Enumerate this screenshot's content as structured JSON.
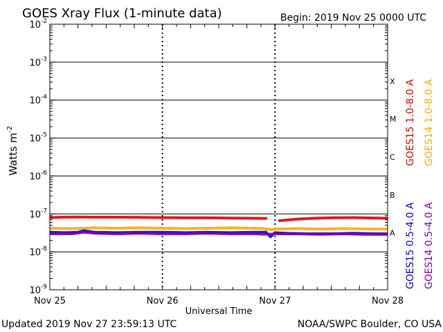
{
  "chart_data": {
    "type": "line",
    "title": "GOES Xray Flux (1-minute data)",
    "begin_label": "Begin:  2019 Nov 25 0000 UTC",
    "xlabel": "Universal Time",
    "ylabel": "Watts m",
    "ylabel_superscript": "-2",
    "ylog": true,
    "ylim": [
      1e-09,
      0.01
    ],
    "xlim": [
      0,
      3
    ],
    "x_ticks": [
      {
        "x": 0,
        "label": "Nov 25"
      },
      {
        "x": 1,
        "label": "Nov 26"
      },
      {
        "x": 2,
        "label": "Nov 27"
      },
      {
        "x": 3,
        "label": "Nov 28"
      }
    ],
    "y_ticks": [
      {
        "exp": -2,
        "base": "10",
        "sup": "-2"
      },
      {
        "exp": -3,
        "base": "10",
        "sup": "-3"
      },
      {
        "exp": -4,
        "base": "10",
        "sup": "-4"
      },
      {
        "exp": -5,
        "base": "10",
        "sup": "-5"
      },
      {
        "exp": -6,
        "base": "10",
        "sup": "-6"
      },
      {
        "exp": -7,
        "base": "10",
        "sup": "-7"
      },
      {
        "exp": -8,
        "base": "10",
        "sup": "-8"
      },
      {
        "exp": -9,
        "base": "10",
        "sup": "-9"
      }
    ],
    "flare_classes": [
      {
        "label": "X",
        "exp": -4
      },
      {
        "label": "M",
        "exp": -5
      },
      {
        "label": "C",
        "exp": -6
      },
      {
        "label": "B",
        "exp": -7
      },
      {
        "label": "A",
        "exp": -8
      }
    ],
    "series": [
      {
        "name": "GOES15 1.0-8.0 A",
        "color": "#dd0000",
        "x": [
          0,
          0.1,
          0.25,
          0.4,
          0.6,
          0.8,
          1.0,
          1.2,
          1.4,
          1.6,
          1.8,
          1.93,
          1.97,
          2.03,
          2.1,
          2.2,
          2.35,
          2.5,
          2.7,
          2.9,
          3.0
        ],
        "y": [
          8e-08,
          8.2e-08,
          8.3e-08,
          8.2e-08,
          8.2e-08,
          8.1e-08,
          8e-08,
          7.9e-08,
          7.9e-08,
          7.8e-08,
          7.7e-08,
          7.6e-08,
          null,
          6.6e-08,
          6.9e-08,
          7.3e-08,
          7.7e-08,
          7.9e-08,
          8e-08,
          7.8e-08,
          7.7e-08
        ]
      },
      {
        "name": "GOES14 1.0-8.0 A",
        "color": "#ffaa00",
        "x": [
          0,
          0.2,
          0.4,
          0.6,
          0.8,
          1.0,
          1.2,
          1.4,
          1.6,
          1.8,
          1.9,
          1.97,
          2.0,
          2.2,
          2.4,
          2.6,
          2.8,
          3.0
        ],
        "y": [
          4.2e-08,
          4.1e-08,
          4.3e-08,
          4.2e-08,
          4.3e-08,
          4.2e-08,
          4.1e-08,
          4.2e-08,
          4.3e-08,
          4.2e-08,
          4.1e-08,
          3.8e-08,
          4e-08,
          4.1e-08,
          4e-08,
          4.1e-08,
          4e-08,
          4e-08
        ]
      },
      {
        "name": "GOES15 0.5-4.0 A",
        "color": "#0000dd",
        "x": [
          0,
          0.15,
          0.25,
          0.3,
          0.4,
          0.6,
          0.8,
          1.0,
          1.2,
          1.4,
          1.6,
          1.8,
          1.92,
          1.96,
          2.0,
          2.1,
          2.3,
          2.5,
          2.7,
          2.9,
          3.0
        ],
        "y": [
          3.3e-08,
          3.2e-08,
          3.3e-08,
          3.6e-08,
          3.3e-08,
          3.2e-08,
          3.3e-08,
          3.3e-08,
          3.2e-08,
          3.3e-08,
          3.2e-08,
          3.3e-08,
          3.3e-08,
          2.5e-08,
          3.2e-08,
          3.1e-08,
          3e-08,
          3e-08,
          3.1e-08,
          3e-08,
          3e-08
        ]
      },
      {
        "name": "GOES14 0.5-4.0 A",
        "color": "#7700aa",
        "x": [
          0,
          0.2,
          0.3,
          0.4,
          0.6,
          0.8,
          1.0,
          1.2,
          1.4,
          1.6,
          1.8,
          1.95,
          2.0,
          2.2,
          2.4,
          2.6,
          2.8,
          3.0
        ],
        "y": [
          3e-08,
          3e-08,
          3.3e-08,
          3.1e-08,
          3e-08,
          3.1e-08,
          3e-08,
          3e-08,
          3.1e-08,
          3e-08,
          3e-08,
          2.9e-08,
          3e-08,
          3e-08,
          2.9e-08,
          3e-08,
          2.9e-08,
          2.9e-08
        ]
      }
    ],
    "grid": true
  },
  "footer": {
    "updated": "Updated 2019 Nov 27 23:59:13 UTC",
    "source": "NOAA/SWPC Boulder, CO USA"
  }
}
